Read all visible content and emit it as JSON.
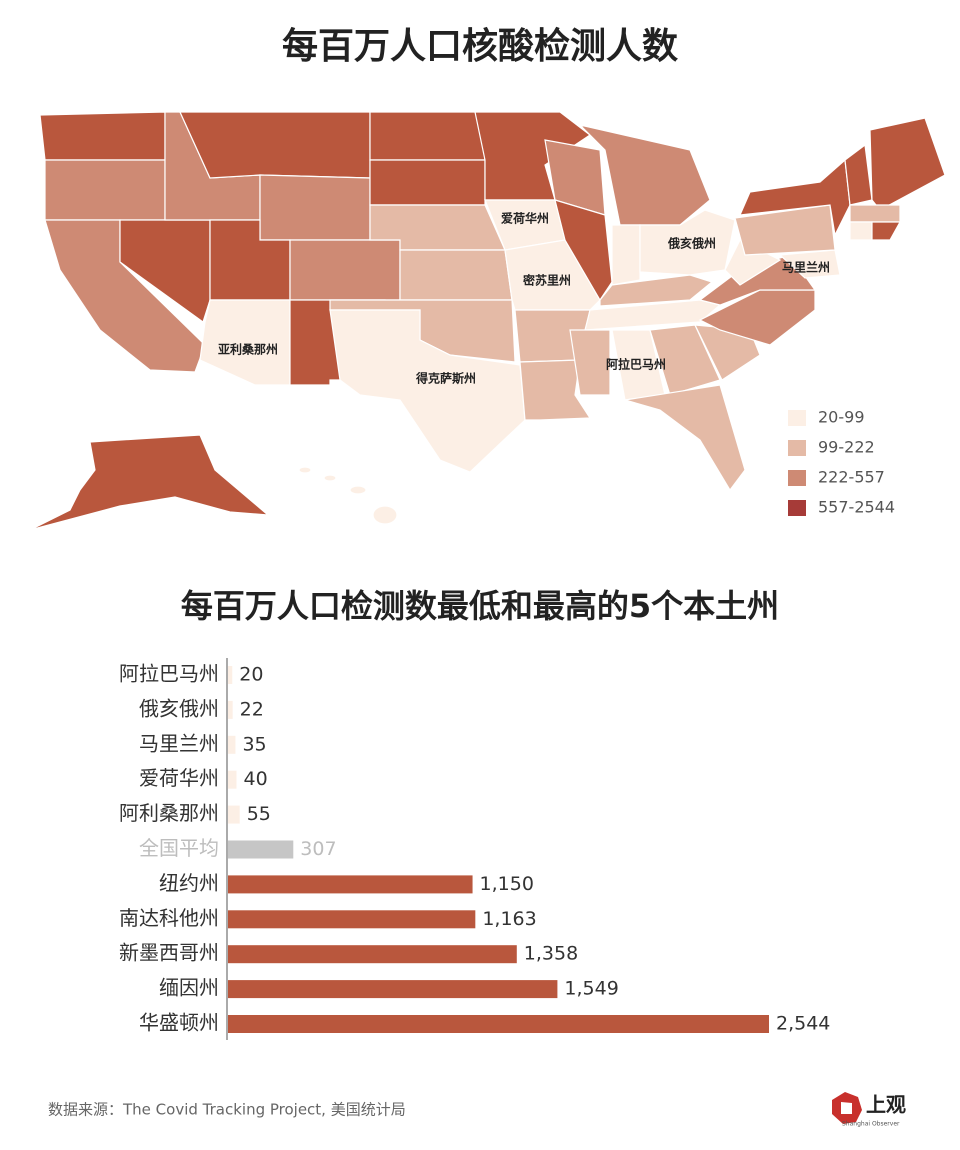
{
  "chart_data": [
    {
      "type": "map",
      "title": "每百万人口核酸检测人数",
      "labels": [
        "爱荷华州",
        "俄亥俄州",
        "马里兰州",
        "密苏里州",
        "亚利桑那州",
        "得克萨斯州",
        "阿拉巴马州"
      ],
      "legend": [
        {
          "label": "20-99",
          "color": "#fcefe5"
        },
        {
          "label": "99-222",
          "color": "#e4baa6"
        },
        {
          "label": "222-557",
          "color": "#ce8a74"
        },
        {
          "label": "557-2544",
          "color": "#a63b38"
        }
      ]
    },
    {
      "type": "bar",
      "title": "每百万人口检测数最低和最高的5个本土州",
      "categories": [
        "阿拉巴马州",
        "俄亥俄州",
        "马里兰州",
        "爱荷华州",
        "阿利桑那州",
        "全国平均",
        "纽约州",
        "南达科他州",
        "新墨西哥州",
        "缅因州",
        "华盛顿州"
      ],
      "values": [
        20,
        22,
        35,
        40,
        55,
        307,
        1150,
        1163,
        1358,
        1549,
        2544
      ],
      "value_labels": [
        "20",
        "22",
        "35",
        "40",
        "55",
        "307",
        "1,150",
        "1,163",
        "1,358",
        "1,549",
        "2,544"
      ],
      "colors": [
        "#fcefe5",
        "#fcefe5",
        "#fcefe5",
        "#fcefe5",
        "#fcefe5",
        "#c6c6c6",
        "#b9573d",
        "#b9573d",
        "#b9573d",
        "#b9573d",
        "#b9573d"
      ],
      "reference_color": "#c6c6c6"
    }
  ],
  "footer": {
    "source": "数据来源：The Covid Tracking Project, 美国统计局",
    "logo": "上观",
    "logo_sub": "Shanghai Observer"
  }
}
